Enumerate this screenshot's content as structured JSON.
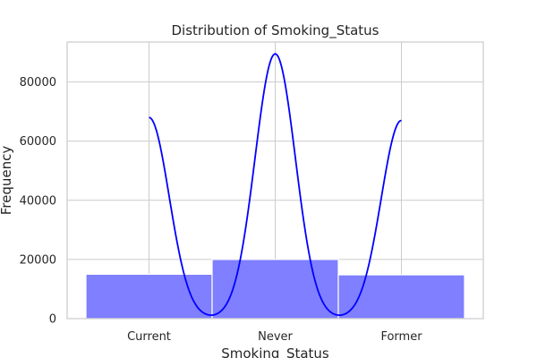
{
  "chart_data": {
    "type": "bar",
    "title": "Distribution of Smoking_Status",
    "xlabel": "Smoking_Status",
    "ylabel": "Frequency",
    "categories": [
      "Current",
      "Never",
      "Former"
    ],
    "values": [
      15000,
      20000,
      14800
    ],
    "ylim": [
      0,
      93500
    ],
    "yticks": [
      0,
      20000,
      40000,
      60000,
      80000
    ],
    "ytick_labels": [
      "0",
      "20000",
      "40000",
      "60000",
      "80000"
    ],
    "kde_peaks": [
      68000,
      89500,
      67000
    ],
    "grid": true,
    "bar_color": "#7f7fff",
    "bar_edge_color": "#ffffff",
    "kde_color": "#0000ff"
  }
}
